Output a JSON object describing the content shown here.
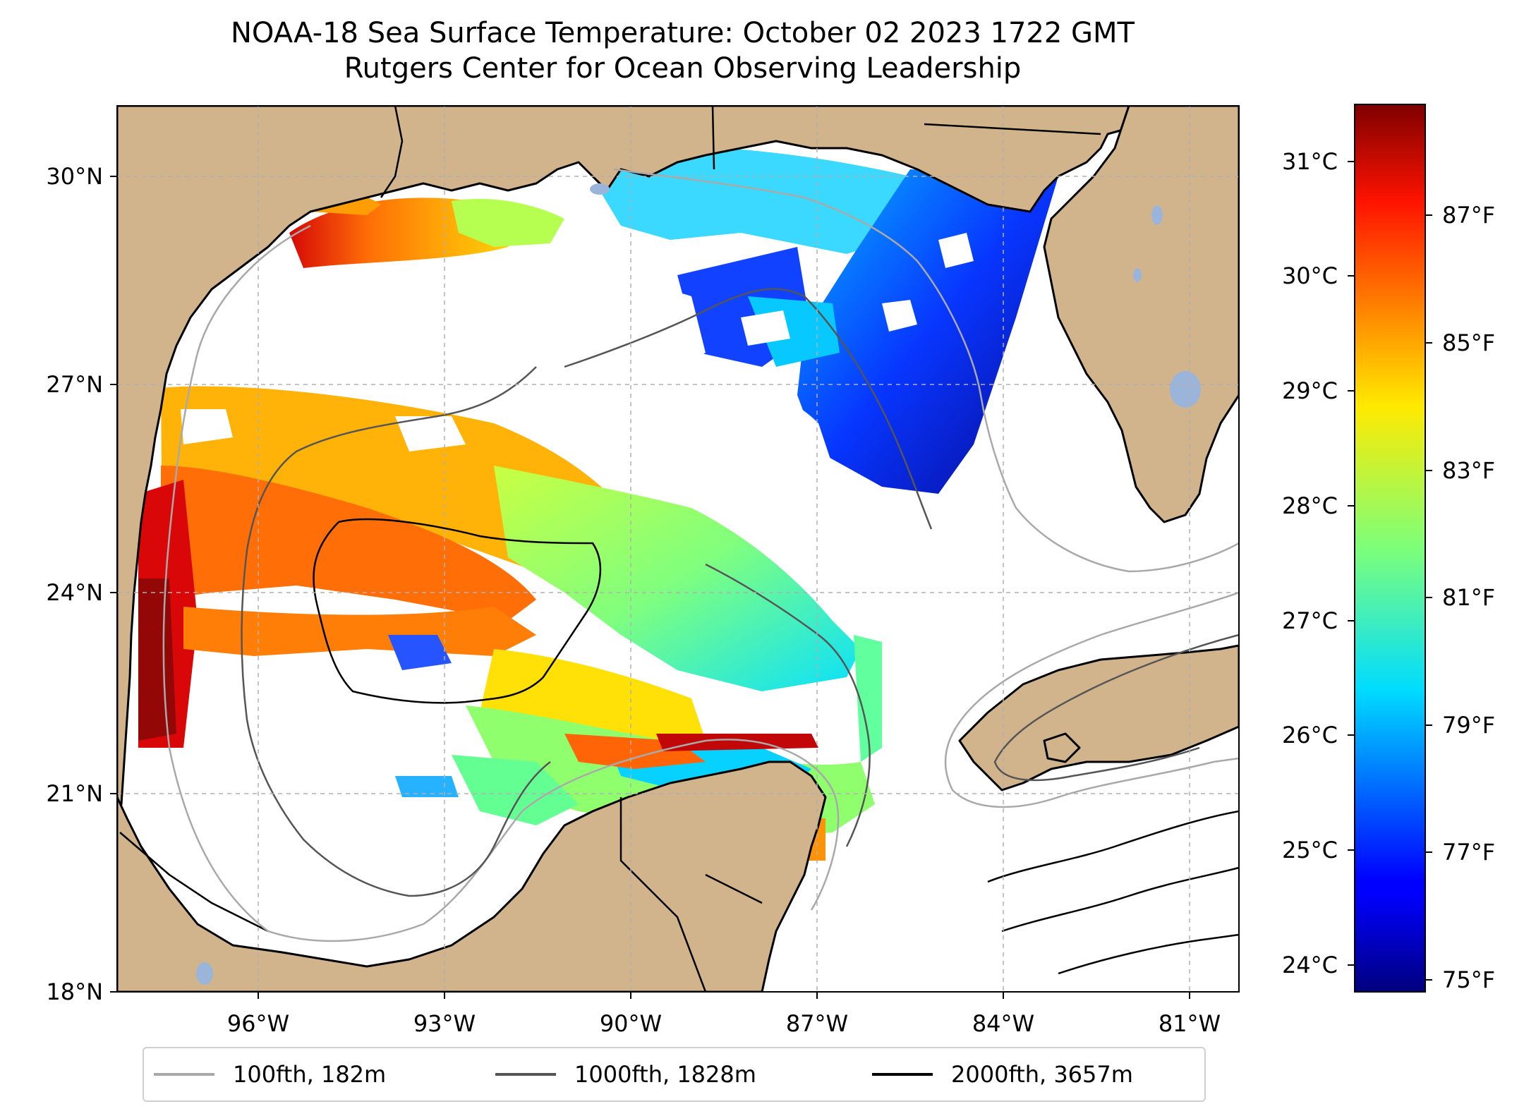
{
  "title": {
    "line1": "NOAA-18 Sea Surface Temperature: October 02 2023 1722 GMT",
    "line2": "Rutgers Center for Ocean Observing Leadership"
  },
  "map": {
    "lat_labels": [
      "30°N",
      "27°N",
      "24°N",
      "21°N",
      "18°N"
    ],
    "lon_labels": [
      "96°W",
      "93°W",
      "90°W",
      "87°W",
      "84°W",
      "81°W"
    ],
    "gridlines": true,
    "colors": {
      "land": "#d2b48c",
      "lakes": "#9bb4d9",
      "ocean_no_data": "#ffffff",
      "contour_100fth": "#a9a9a9",
      "contour_1000fth": "#555555",
      "contour_2000fth": "#000000"
    }
  },
  "colorbar": {
    "colormap": "jet",
    "celsius_labels": [
      "31°C",
      "30°C",
      "29°C",
      "28°C",
      "27°C",
      "26°C",
      "25°C",
      "24°C"
    ],
    "fahrenheit_labels": [
      "87°F",
      "85°F",
      "83°F",
      "81°F",
      "79°F",
      "77°F",
      "75°F"
    ]
  },
  "legend": {
    "items": [
      {
        "label": "100fth, 182m",
        "color": "#a9a9a9"
      },
      {
        "label": "1000fth, 1828m",
        "color": "#555555"
      },
      {
        "label": "2000fth, 3657m",
        "color": "#000000"
      }
    ]
  }
}
